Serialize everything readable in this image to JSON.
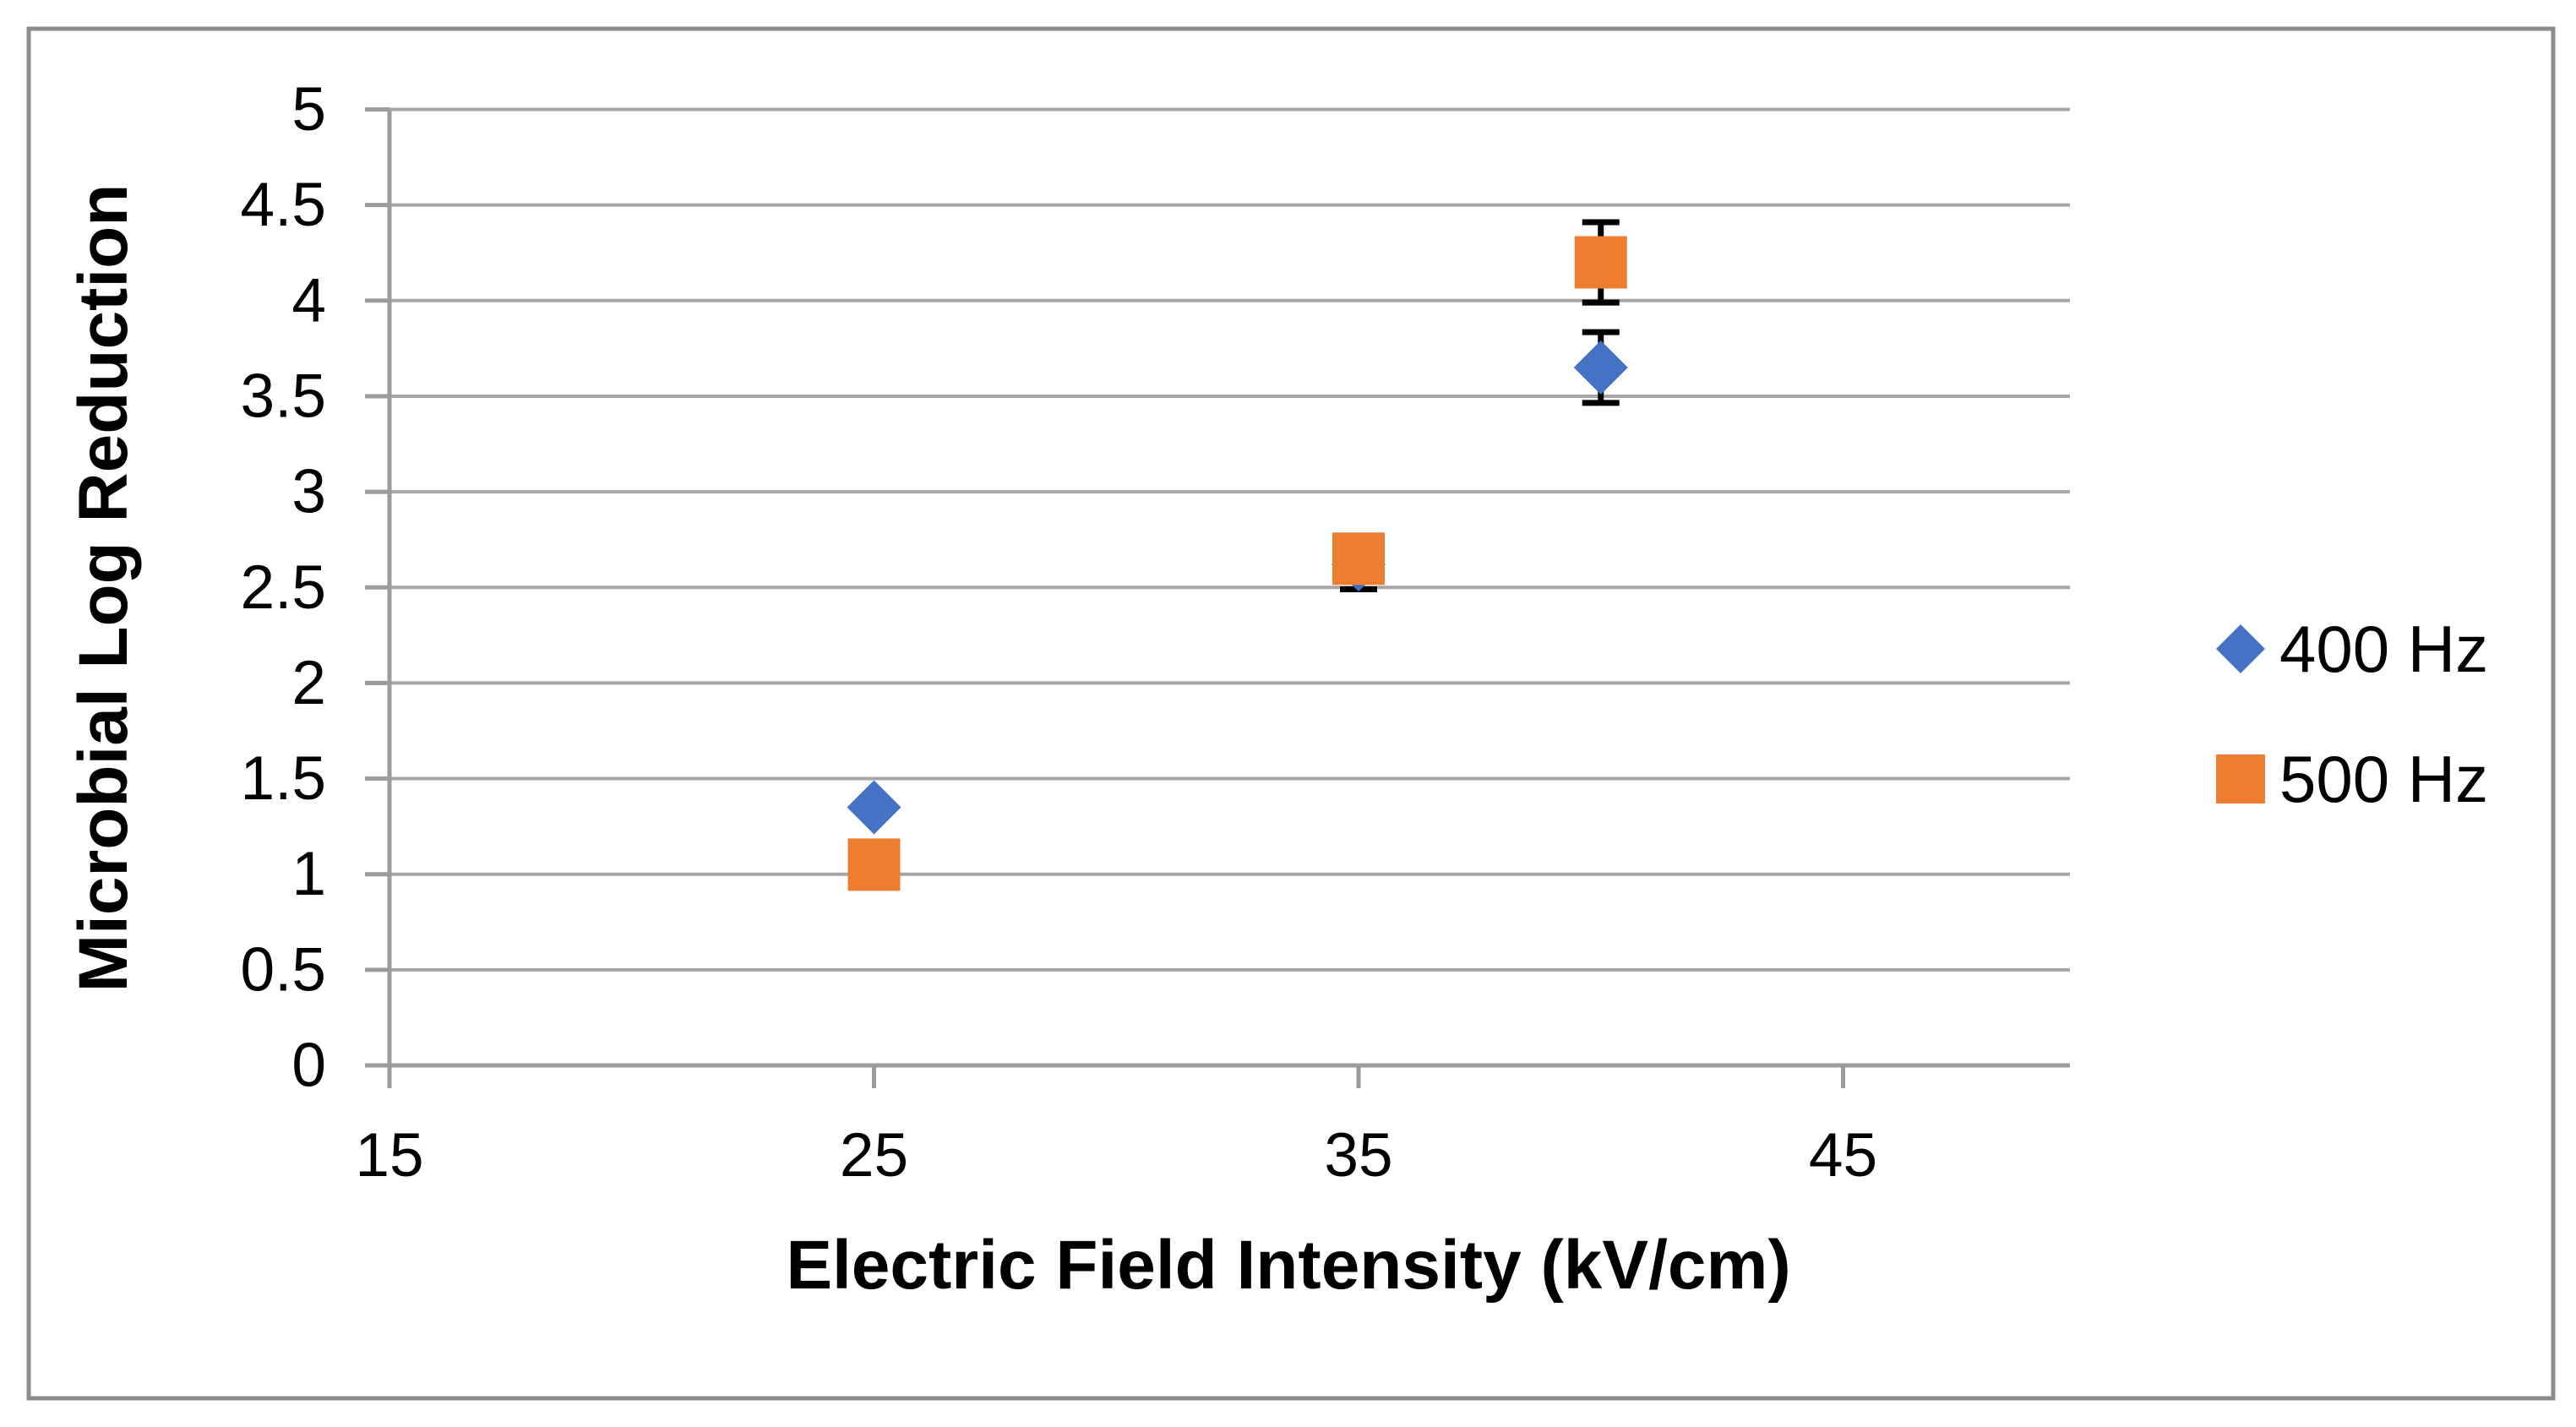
{
  "chart_data": {
    "type": "scatter",
    "title": "",
    "xlabel": "Electric Field Intensity (kV/cm)",
    "ylabel": "Microbial Log Reduction",
    "x_ticks": [
      15,
      25,
      35,
      45
    ],
    "x_tick_labels": [
      "15",
      "25",
      "35",
      "45"
    ],
    "y_ticks": [
      0,
      0.5,
      1,
      1.5,
      2,
      2.5,
      3,
      3.5,
      4,
      4.5,
      5
    ],
    "y_tick_labels": [
      "0",
      "0.5",
      "1",
      "1.5",
      "2",
      "2.5",
      "3",
      "3.5",
      "4",
      "4.5",
      "5"
    ],
    "xlim": [
      15,
      49.7
    ],
    "ylim": [
      0,
      5
    ],
    "grid": "horizontal",
    "legend_position": "right",
    "error_bar_color": "#000000",
    "series": [
      {
        "name": "400 Hz",
        "marker": "diamond",
        "color": "#4472C4",
        "points": [
          {
            "x": 25,
            "y": 1.35,
            "err": null
          },
          {
            "x": 35,
            "y": 2.62,
            "err": 0.13
          },
          {
            "x": 40,
            "y": 3.65,
            "err": 0.185
          }
        ]
      },
      {
        "name": "500 Hz",
        "marker": "square",
        "color": "#ED7D31",
        "points": [
          {
            "x": 25,
            "y": 1.05,
            "err": null
          },
          {
            "x": 35,
            "y": 2.65,
            "err": null
          },
          {
            "x": 40,
            "y": 4.2,
            "err": 0.21
          }
        ]
      }
    ],
    "colors": {
      "gridline": "#A6A6A6",
      "axis_line": "#9B9B9B",
      "chart_border": "#8C8C8C",
      "text": "#000000"
    }
  }
}
